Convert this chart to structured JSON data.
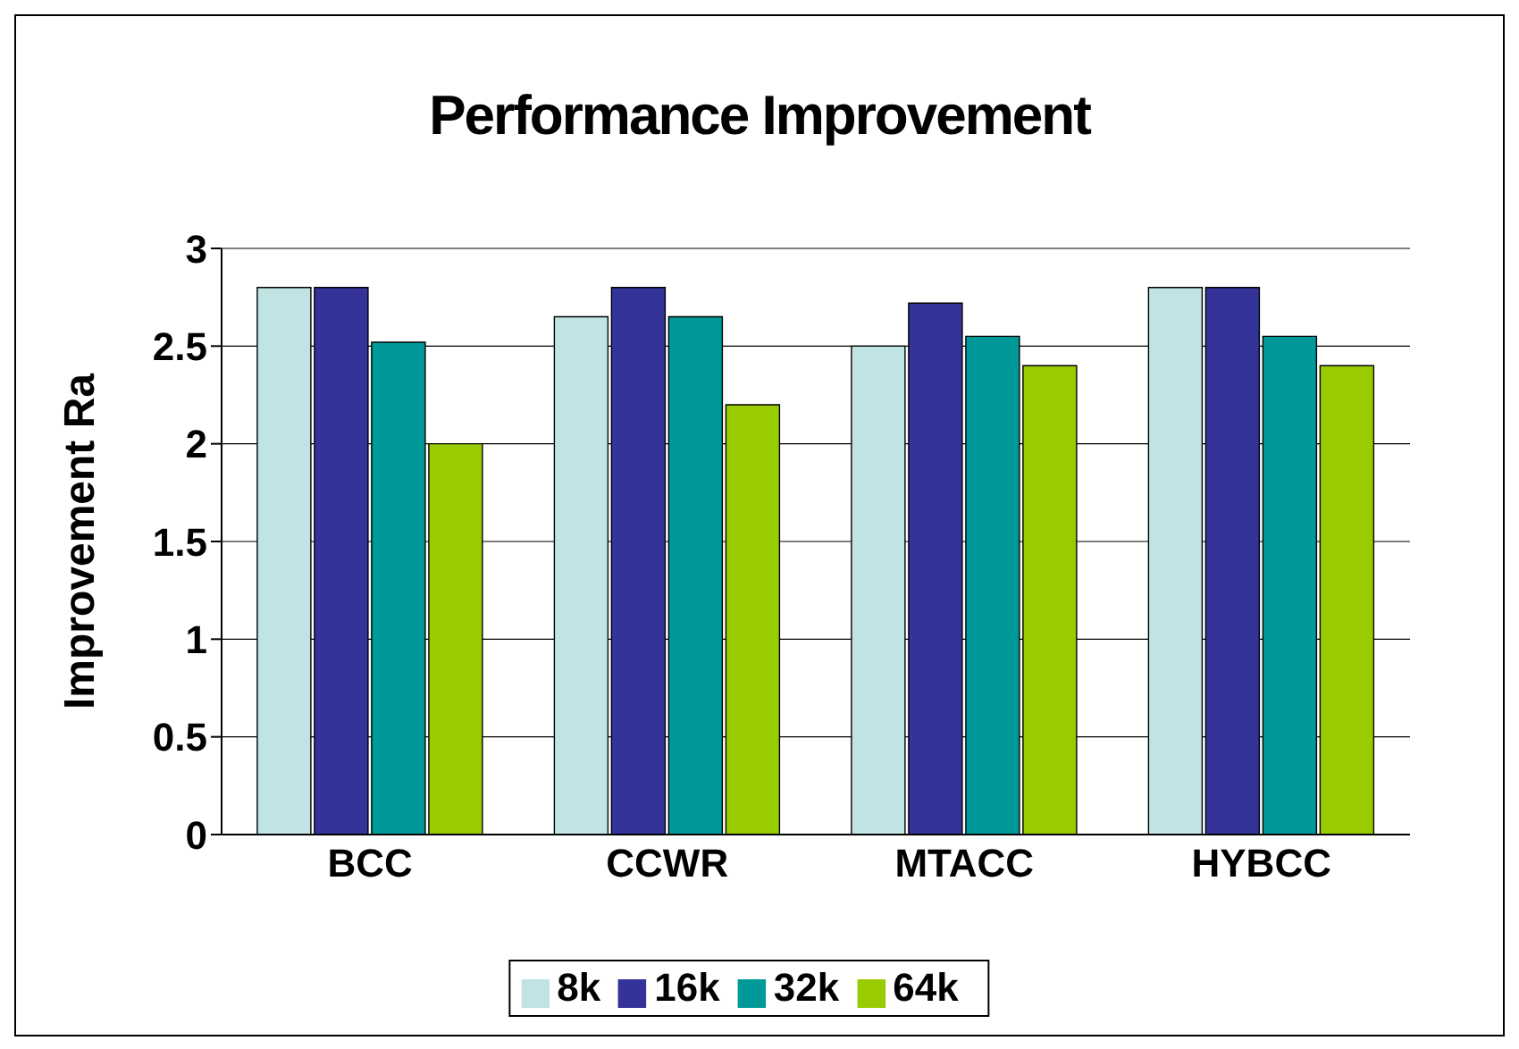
{
  "chart_data": {
    "type": "bar",
    "title": "Performance Improvement",
    "ylabel": "Improvement Ra",
    "categories": [
      "BCC",
      "CCWR",
      "MTACC",
      "HYBCC"
    ],
    "series": [
      {
        "name": "8k",
        "color": "#c0e4e4",
        "values": [
          2.8,
          2.65,
          2.5,
          2.8
        ]
      },
      {
        "name": "16k",
        "color": "#333399",
        "values": [
          2.8,
          2.8,
          2.72,
          2.8
        ]
      },
      {
        "name": "32k",
        "color": "#009999",
        "values": [
          2.52,
          2.65,
          2.55,
          2.55
        ]
      },
      {
        "name": "64k",
        "color": "#99cc00",
        "values": [
          2.0,
          2.2,
          2.4,
          2.4
        ]
      }
    ],
    "ylim": [
      0,
      3
    ],
    "yticks": [
      0,
      0.5,
      1,
      1.5,
      2,
      2.5,
      3
    ],
    "grid": "y",
    "legend": "bottom"
  }
}
